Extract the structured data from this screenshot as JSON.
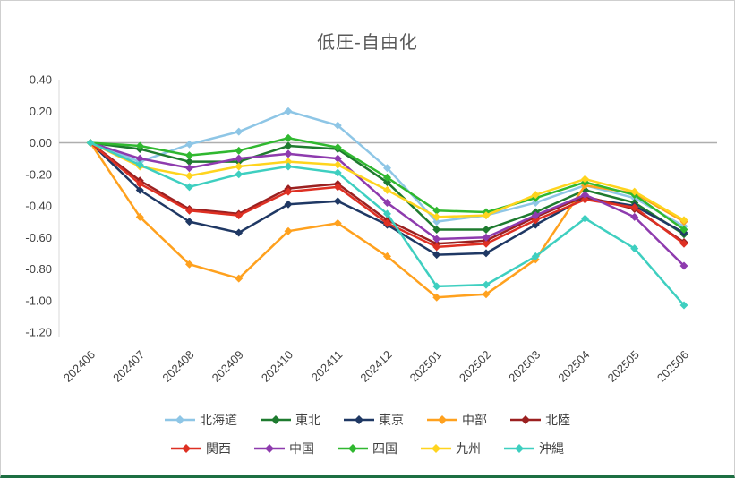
{
  "colors": {
    "background": "#ffffff",
    "zero_line": "#aeaeae",
    "axis_line": "#d9d9d9",
    "title_text": "#595959",
    "tick_text": "#404040",
    "legend_text": "#404040",
    "bottom_bar": "#1d6f42"
  },
  "chart_data": {
    "type": "line",
    "title": "低圧-自由化",
    "xlabel": "",
    "ylabel": "",
    "ylim": [
      -1.2,
      0.4
    ],
    "ytick_step": 0.2,
    "grid": "zero-line-only",
    "legend_position": "bottom",
    "marker": "diamond",
    "categories": [
      "202406",
      "202407",
      "202408",
      "202409",
      "202410",
      "202411",
      "202412",
      "202501",
      "202502",
      "202503",
      "202504",
      "202505",
      "202506"
    ],
    "series": [
      {
        "name": "北海道",
        "color": "#8ec6e6",
        "values": [
          0.0,
          -0.12,
          -0.01,
          0.07,
          0.2,
          0.11,
          -0.16,
          -0.5,
          -0.46,
          -0.38,
          -0.27,
          -0.35,
          -0.53
        ]
      },
      {
        "name": "東北",
        "color": "#1e7b2f",
        "values": [
          0.0,
          -0.04,
          -0.12,
          -0.12,
          -0.02,
          -0.04,
          -0.25,
          -0.55,
          -0.55,
          -0.44,
          -0.3,
          -0.38,
          -0.58
        ]
      },
      {
        "name": "東京",
        "color": "#1f3864",
        "values": [
          0.0,
          -0.3,
          -0.5,
          -0.57,
          -0.39,
          -0.37,
          -0.52,
          -0.71,
          -0.7,
          -0.52,
          -0.35,
          -0.4,
          -0.57
        ]
      },
      {
        "name": "中部",
        "color": "#ffa11e",
        "values": [
          0.0,
          -0.47,
          -0.77,
          -0.86,
          -0.56,
          -0.51,
          -0.72,
          -0.98,
          -0.96,
          -0.74,
          -0.27,
          -0.32,
          -0.5
        ]
      },
      {
        "name": "北陸",
        "color": "#9b2020",
        "values": [
          0.0,
          -0.24,
          -0.42,
          -0.45,
          -0.29,
          -0.26,
          -0.49,
          -0.64,
          -0.62,
          -0.47,
          -0.34,
          -0.42,
          -0.63
        ]
      },
      {
        "name": "関西",
        "color": "#de3023",
        "values": [
          0.0,
          -0.26,
          -0.43,
          -0.46,
          -0.31,
          -0.28,
          -0.51,
          -0.66,
          -0.64,
          -0.49,
          -0.36,
          -0.41,
          -0.64
        ]
      },
      {
        "name": "中国",
        "color": "#8e3bae",
        "values": [
          0.0,
          -0.1,
          -0.16,
          -0.1,
          -0.07,
          -0.1,
          -0.38,
          -0.61,
          -0.6,
          -0.46,
          -0.33,
          -0.47,
          -0.78
        ]
      },
      {
        "name": "四国",
        "color": "#30b830",
        "values": [
          0.0,
          -0.02,
          -0.08,
          -0.05,
          0.03,
          -0.03,
          -0.22,
          -0.43,
          -0.44,
          -0.35,
          -0.25,
          -0.33,
          -0.55
        ]
      },
      {
        "name": "九州",
        "color": "#ffd41e",
        "values": [
          0.0,
          -0.15,
          -0.21,
          -0.15,
          -0.12,
          -0.14,
          -0.3,
          -0.47,
          -0.46,
          -0.33,
          -0.23,
          -0.31,
          -0.49
        ]
      },
      {
        "name": "沖縄",
        "color": "#3ecfc0",
        "values": [
          0.0,
          -0.14,
          -0.28,
          -0.2,
          -0.15,
          -0.19,
          -0.45,
          -0.91,
          -0.9,
          -0.72,
          -0.48,
          -0.67,
          -1.03
        ]
      }
    ]
  }
}
